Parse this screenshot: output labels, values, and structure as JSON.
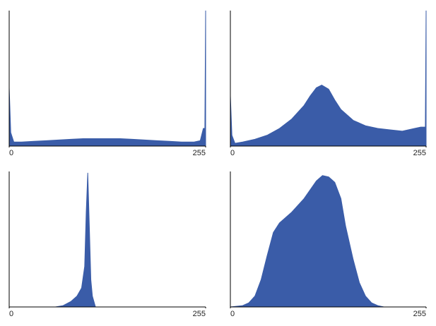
{
  "chart_data": [
    {
      "type": "area",
      "color": "#3a5ca8",
      "xlim": [
        0,
        255
      ],
      "ylim": [
        0,
        100
      ],
      "xticks": [
        0,
        255
      ],
      "x": [
        0,
        2,
        6,
        16,
        32,
        48,
        64,
        80,
        96,
        112,
        128,
        144,
        160,
        176,
        192,
        208,
        224,
        240,
        248,
        252,
        254,
        255
      ],
      "values": [
        43,
        10,
        3,
        3,
        3.5,
        4,
        4.5,
        5,
        5.5,
        5.5,
        5.5,
        5.5,
        5,
        4.5,
        4,
        3.5,
        3,
        3,
        4,
        13,
        13,
        100
      ]
    },
    {
      "type": "area",
      "color": "#3a5ca8",
      "xlim": [
        0,
        255
      ],
      "ylim": [
        0,
        100
      ],
      "xticks": [
        0,
        255
      ],
      "x": [
        0,
        2,
        6,
        16,
        32,
        48,
        64,
        80,
        96,
        104,
        112,
        119,
        128,
        136,
        144,
        160,
        176,
        192,
        208,
        224,
        240,
        248,
        254,
        255
      ],
      "values": [
        37,
        8,
        2,
        3,
        5,
        8,
        13,
        20,
        30,
        37,
        43,
        45,
        42,
        34,
        27,
        19,
        15,
        13,
        12,
        11,
        13,
        14,
        14,
        100
      ]
    },
    {
      "type": "area",
      "color": "#3a5ca8",
      "xlim": [
        0,
        255
      ],
      "ylim": [
        0,
        100
      ],
      "xticks": [
        0,
        255
      ],
      "x": [
        0,
        60,
        70,
        80,
        88,
        94,
        98,
        100,
        102,
        104,
        106,
        108,
        112,
        120,
        255
      ],
      "values": [
        0,
        0,
        1,
        4,
        8,
        14,
        30,
        70,
        99,
        60,
        20,
        8,
        0,
        0,
        0
      ]
    },
    {
      "type": "area",
      "color": "#3a5ca8",
      "xlim": [
        0,
        255
      ],
      "ylim": [
        0,
        100
      ],
      "xticks": [
        0,
        255
      ],
      "x": [
        0,
        16,
        24,
        32,
        40,
        48,
        56,
        64,
        80,
        96,
        112,
        120,
        128,
        136,
        144,
        150,
        160,
        168,
        176,
        184,
        192,
        200,
        255
      ],
      "values": [
        0,
        1,
        3,
        8,
        20,
        38,
        55,
        62,
        70,
        80,
        93,
        97,
        96,
        92,
        80,
        60,
        35,
        18,
        8,
        3,
        1,
        0,
        0
      ]
    }
  ]
}
